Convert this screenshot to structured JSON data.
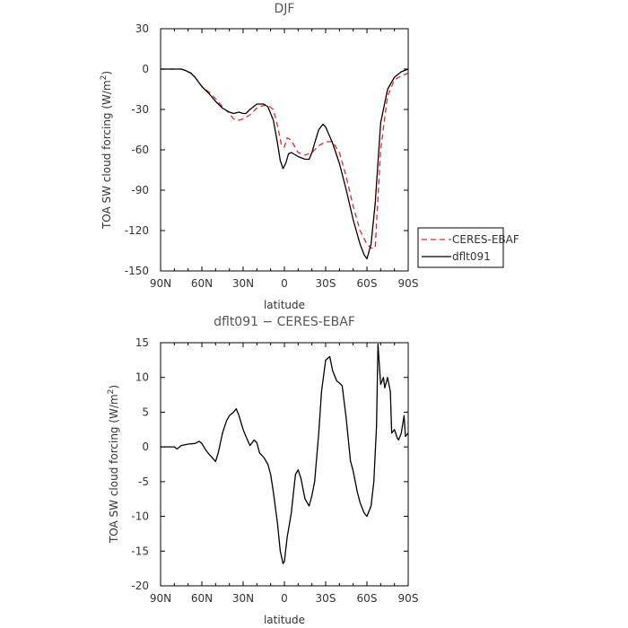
{
  "chart_data": [
    {
      "type": "line",
      "title": "DJF",
      "xlabel": "latitude",
      "ylabel": "TOA SW cloud forcing (W/m",
      "ylabel_sup": "2",
      "ylabel_tail": ")",
      "xlim": [
        90,
        -90
      ],
      "ylim": [
        -150,
        30
      ],
      "xticks": [
        90,
        60,
        30,
        0,
        -30,
        -60,
        -90
      ],
      "xtick_labels": [
        "90N",
        "60N",
        "30N",
        "0",
        "30S",
        "60S",
        "90S"
      ],
      "yticks": [
        30,
        0,
        -30,
        -60,
        -90,
        -120,
        -150
      ],
      "ytick_labels": [
        "30",
        "0",
        "-30",
        "-60",
        "-90",
        "-120",
        "-150"
      ],
      "legend_position": "right",
      "series": [
        {
          "name": "CERES-EBAF",
          "color": "#e8262a",
          "dash": "dashed",
          "x": [
            90,
            85,
            80,
            75,
            72,
            68,
            65,
            60,
            55,
            50,
            45,
            40,
            37,
            33,
            30,
            25,
            20,
            15,
            12,
            8,
            5,
            2,
            0,
            -2,
            -5,
            -10,
            -15,
            -20,
            -25,
            -30,
            -35,
            -40,
            -45,
            -50,
            -55,
            -60,
            -63,
            -66,
            -70,
            -75,
            -80,
            -85,
            -90
          ],
          "y": [
            0,
            0,
            0,
            0,
            -1,
            -3,
            -6,
            -13,
            -17,
            -22,
            -28,
            -33,
            -37,
            -38,
            -37,
            -34,
            -29,
            -27,
            -27,
            -30,
            -42,
            -57,
            -58,
            -51,
            -53,
            -62,
            -64,
            -62,
            -57,
            -54,
            -54,
            -62,
            -80,
            -102,
            -120,
            -130,
            -133,
            -133,
            -60,
            -20,
            -8,
            -5,
            -3
          ]
        },
        {
          "name": "dflt091",
          "color": "#000000",
          "dash": "solid",
          "x": [
            90,
            85,
            80,
            75,
            72,
            68,
            65,
            60,
            55,
            50,
            45,
            40,
            37,
            33,
            30,
            28,
            25,
            20,
            15,
            12,
            8,
            5,
            3,
            1,
            -1,
            -3,
            -5,
            -10,
            -15,
            -18,
            -20,
            -22,
            -25,
            -28,
            -30,
            -35,
            -40,
            -45,
            -50,
            -55,
            -58,
            -60,
            -63,
            -66,
            -70,
            -75,
            -80,
            -85,
            -90
          ],
          "y": [
            0,
            0,
            0,
            0,
            -1,
            -3,
            -6,
            -13,
            -18,
            -24,
            -29,
            -32,
            -33,
            -32,
            -33,
            -33,
            -30,
            -26,
            -26,
            -28,
            -38,
            -55,
            -68,
            -74,
            -70,
            -63,
            -62,
            -65,
            -67,
            -67,
            -62,
            -55,
            -45,
            -41,
            -43,
            -55,
            -70,
            -90,
            -112,
            -130,
            -138,
            -141,
            -130,
            -100,
            -40,
            -15,
            -6,
            -2,
            0
          ]
        }
      ]
    },
    {
      "type": "line",
      "title": "dflt091 − CERES-EBAF",
      "xlabel": "latitude",
      "ylabel": "TOA SW cloud forcing (W/m",
      "ylabel_sup": "2",
      "ylabel_tail": ")",
      "xlim": [
        90,
        -90
      ],
      "ylim": [
        -20,
        15
      ],
      "xticks": [
        90,
        60,
        30,
        0,
        -30,
        -60,
        -90
      ],
      "xtick_labels": [
        "90N",
        "60N",
        "30N",
        "0",
        "30S",
        "60S",
        "90S"
      ],
      "yticks": [
        15,
        10,
        5,
        0,
        -5,
        -10,
        -15,
        -20
      ],
      "ytick_labels": [
        "15",
        "10",
        "5",
        "0",
        "-5",
        "-10",
        "-15",
        "-20"
      ],
      "series": [
        {
          "color": "#000000",
          "dash": "solid",
          "x": [
            90,
            85,
            80,
            78,
            75,
            70,
            65,
            62,
            60,
            57,
            55,
            50,
            48,
            45,
            42,
            40,
            37,
            35,
            33,
            30,
            28,
            25,
            22,
            20,
            18,
            15,
            12,
            10,
            8,
            5,
            3,
            1,
            0,
            -2,
            -5,
            -8,
            -10,
            -12,
            -15,
            -18,
            -20,
            -22,
            -25,
            -27,
            -30,
            -33,
            -35,
            -38,
            -40,
            -42,
            -45,
            -48,
            -50,
            -53,
            -55,
            -58,
            -60,
            -63,
            -65,
            -67,
            -68,
            -70,
            -72,
            -73,
            -75,
            -77,
            -78,
            -80,
            -82,
            -83,
            -85,
            -87,
            -88,
            -90
          ],
          "y": [
            0,
            0,
            0,
            -0.3,
            0.2,
            0.4,
            0.5,
            0.8,
            0.5,
            -0.5,
            -1.0,
            -2.1,
            -0.8,
            2.0,
            3.8,
            4.5,
            5.0,
            5.5,
            4.5,
            2.5,
            1.5,
            0.2,
            1.0,
            0.6,
            -0.9,
            -1.5,
            -2.5,
            -4.0,
            -6.5,
            -11,
            -15,
            -16.8,
            -16.5,
            -13,
            -9.5,
            -4,
            -3.3,
            -4.5,
            -7.5,
            -8.5,
            -7,
            -5,
            2,
            8,
            12.5,
            13,
            11,
            9.5,
            9.2,
            8.8,
            4,
            -2,
            -3.5,
            -6.5,
            -8,
            -9.5,
            -10,
            -8.5,
            -5,
            3,
            14.8,
            9,
            10,
            8.5,
            10,
            8,
            2,
            2.5,
            1.3,
            1,
            2,
            4.5,
            1.5,
            2
          ]
        }
      ]
    }
  ]
}
